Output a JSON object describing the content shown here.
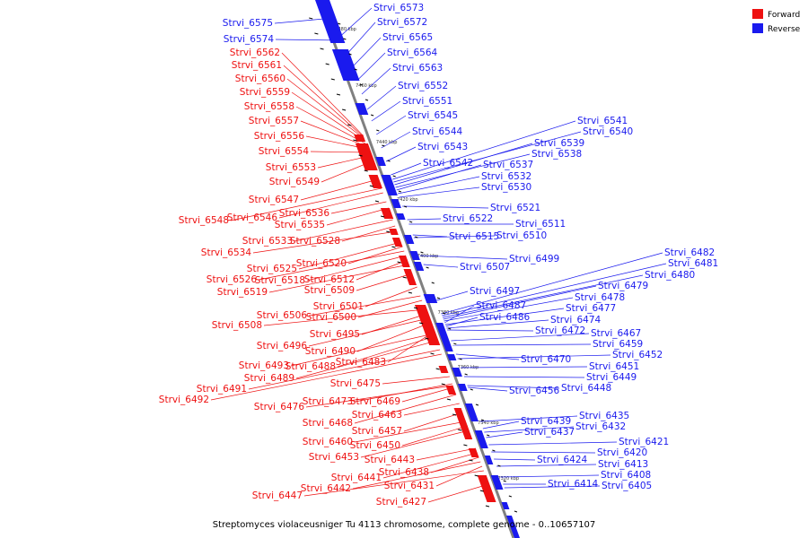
{
  "title": "Streptomyces violaceusniger Tu 4113 chromosome, complete genome - 0..10657107",
  "legend": [
    {
      "label": "Forward",
      "color": "#ee1111"
    },
    {
      "label": "Reverse",
      "color": "#1a1aee"
    }
  ],
  "colors": {
    "forward": "#ee1111",
    "reverse": "#1a1aee",
    "axis": "#808080"
  },
  "ticks": [
    "7480 kbp",
    "7460 kbp",
    "7440 kbp",
    "7420 kbp",
    "7400 kbp",
    "7380 kbp",
    "7360 kbp",
    "7340 kbp",
    "7320 kbp"
  ],
  "genes": {
    "forward": [
      "Strvi_6562",
      "Strvi_6561",
      "Strvi_6560",
      "Strvi_6559",
      "Strvi_6558",
      "Strvi_6557",
      "Strvi_6556",
      "Strvi_6554",
      "Strvi_6553",
      "Strvi_6549",
      "Strvi_6547",
      "Strvi_6548",
      "Strvi_6546",
      "Strvi_6536",
      "Strvi_6535",
      "Strvi_6533",
      "Strvi_6528",
      "Strvi_6534",
      "Strvi_6525",
      "Strvi_6520",
      "Strvi_6526",
      "Strvi_6518",
      "Strvi_6512",
      "Strvi_6519",
      "Strvi_6509",
      "Strvi_6501",
      "Strvi_6506",
      "Strvi_6500",
      "Strvi_6508",
      "Strvi_6495",
      "Strvi_6496",
      "Strvi_6490",
      "Strvi_6483",
      "Strvi_6493",
      "Strvi_6488",
      "Strvi_6489",
      "Strvi_6491",
      "Strvi_6492",
      "Strvi_6475",
      "Strvi_6473",
      "Strvi_6469",
      "Strvi_6476",
      "Strvi_6463",
      "Strvi_6468",
      "Strvi_6457",
      "Strvi_6460",
      "Strvi_6450",
      "Strvi_6453",
      "Strvi_6443",
      "Strvi_6441",
      "Strvi_6438",
      "Strvi_6442",
      "Strvi_6431",
      "Strvi_6447",
      "Strvi_6427"
    ],
    "reverse": [
      "Strvi_6575",
      "Strvi_6574",
      "Strvi_6573",
      "Strvi_6572",
      "Strvi_6565",
      "Strvi_6564",
      "Strvi_6563",
      "Strvi_6552",
      "Strvi_6551",
      "Strvi_6545",
      "Strvi_6544",
      "Strvi_6543",
      "Strvi_6542",
      "Strvi_6541",
      "Strvi_6540",
      "Strvi_6539",
      "Strvi_6538",
      "Strvi_6537",
      "Strvi_6532",
      "Strvi_6530",
      "Strvi_6521",
      "Strvi_6522",
      "Strvi_6511",
      "Strvi_6515",
      "Strvi_6510",
      "Strvi_6499",
      "Strvi_6507",
      "Strvi_6482",
      "Strvi_6481",
      "Strvi_6480",
      "Strvi_6479",
      "Strvi_6497",
      "Strvi_6478",
      "Strvi_6487",
      "Strvi_6477",
      "Strvi_6486",
      "Strvi_6474",
      "Strvi_6472",
      "Strvi_6467",
      "Strvi_6459",
      "Strvi_6470",
      "Strvi_6452",
      "Strvi_6451",
      "Strvi_6449",
      "Strvi_6456",
      "Strvi_6448",
      "Strvi_6435",
      "Strvi_6439",
      "Strvi_6432",
      "Strvi_6437",
      "Strvi_6421",
      "Strvi_6420",
      "Strvi_6424",
      "Strvi_6413",
      "Strvi_6408",
      "Strvi_6414",
      "Strvi_6405"
    ]
  }
}
